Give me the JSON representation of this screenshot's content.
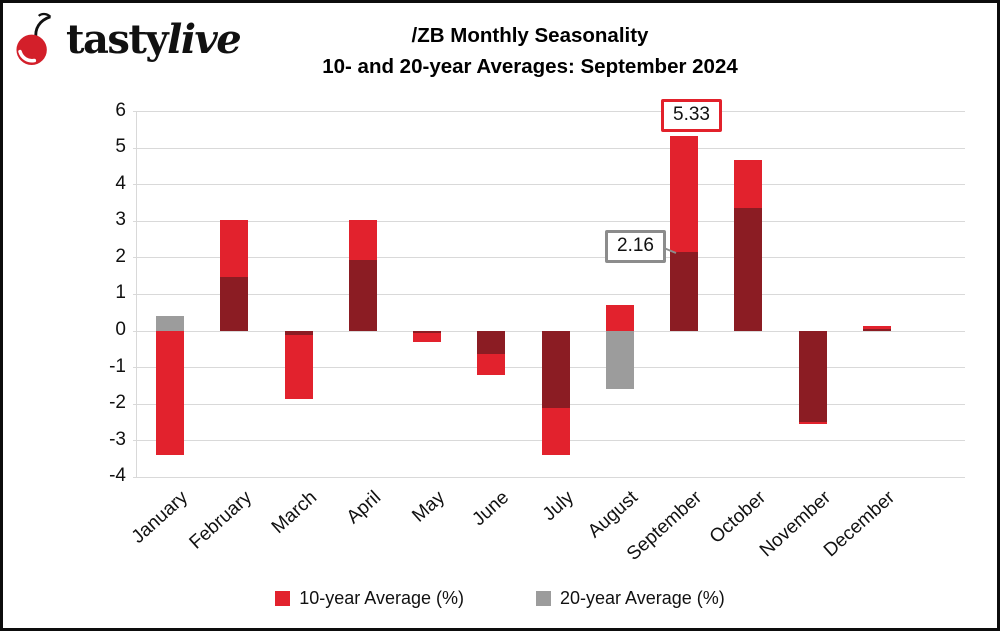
{
  "logo": {
    "brand_tasty": "tasty",
    "brand_live": "live",
    "icon": "cherry-icon"
  },
  "title": {
    "line1": "/ZB Monthly Seasonality",
    "line2": "10- and 20-year Averages: September 2024"
  },
  "colors": {
    "red_10yr": "#e2222d",
    "gray_20yr": "#9c9c9c",
    "overlap_maroon": "#8b1c23",
    "gridline": "#d9d9d9",
    "callout_red_border": "#e2212b",
    "callout_gray_border": "#8c8c8c"
  },
  "chart_data": {
    "type": "bar",
    "title": "/ZB Monthly Seasonality 10- and 20-year Averages: September 2024",
    "categories": [
      "January",
      "February",
      "March",
      "April",
      "May",
      "June",
      "July",
      "August",
      "September",
      "October",
      "November",
      "December"
    ],
    "series": [
      {
        "name": "10-year Average (%)",
        "color": "#e2222d",
        "values": [
          -3.4,
          3.03,
          -1.85,
          3.05,
          -0.3,
          -1.2,
          -3.4,
          0.7,
          5.33,
          4.67,
          -2.55,
          0.15
        ]
      },
      {
        "name": "20-year Average (%)",
        "color": "#9c9c9c",
        "values": [
          0.4,
          1.48,
          -0.1,
          1.95,
          -0.05,
          -0.62,
          -2.12,
          -1.6,
          2.16,
          3.36,
          -2.5,
          0.05
        ]
      }
    ],
    "annotations": [
      {
        "label": "5.33",
        "month": "September",
        "series": "10-year Average (%)",
        "style": "red-box"
      },
      {
        "label": "2.16",
        "month": "September",
        "series": "20-year Average (%)",
        "style": "gray-box-with-leader"
      }
    ],
    "ylim": [
      -4,
      6
    ],
    "yticks": [
      6,
      5,
      4,
      3,
      2,
      1,
      0,
      -1,
      -2,
      -3,
      -4
    ],
    "xlabel": "",
    "ylabel": "",
    "grid": true,
    "legend_position": "bottom",
    "note": "20-year bars render gray where not overlapping the 10-year bar, dark maroon where overlapping"
  },
  "legend": {
    "items": [
      {
        "label": "10-year Average (%)",
        "color": "#e2222d"
      },
      {
        "label": "20-year Average (%)",
        "color": "#9c9c9c"
      }
    ]
  }
}
